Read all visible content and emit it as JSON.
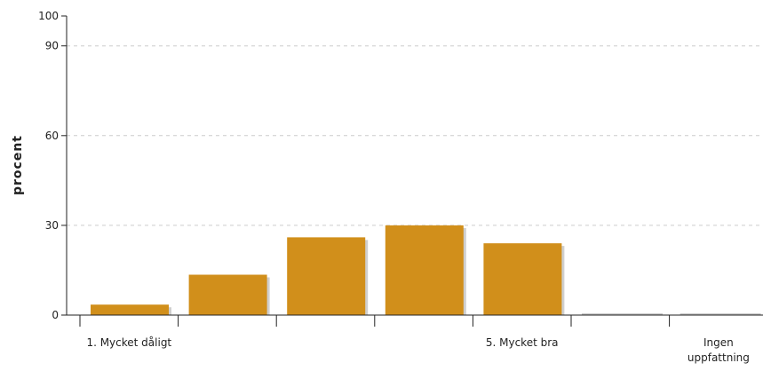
{
  "chart_data": {
    "type": "bar",
    "ylabel": "procent",
    "ylim": [
      0,
      100
    ],
    "yticks": [
      0,
      30,
      60,
      90,
      100
    ],
    "grid": true,
    "bar_color": "#D18F1B",
    "shadow_color": "#CFCFCF",
    "categories": [
      "1. Mycket dåligt",
      "",
      "",
      "",
      "5. Mycket bra",
      "",
      "Ingen uppfattning"
    ],
    "category_label_lines": [
      [
        "1. Mycket dåligt"
      ],
      [
        ""
      ],
      [
        ""
      ],
      [
        ""
      ],
      [
        "5. Mycket bra"
      ],
      [
        ""
      ],
      [
        "Ingen",
        "uppfattning"
      ]
    ],
    "values": [
      3.5,
      13.5,
      26,
      30,
      24,
      0,
      0
    ]
  }
}
